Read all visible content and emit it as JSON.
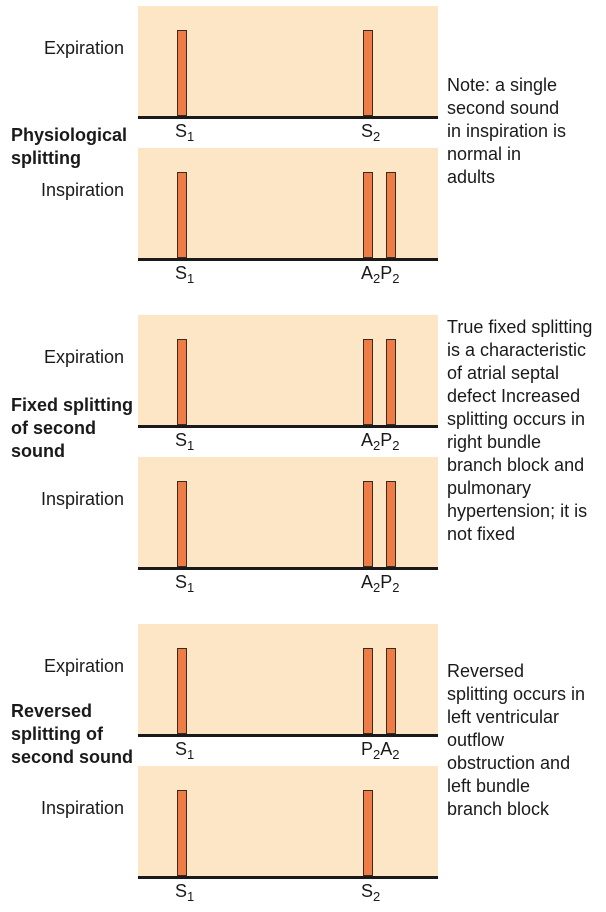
{
  "sections": [
    {
      "id": "physiological",
      "title": "Physiological splitting",
      "note": "Note: a single second sound in inspiration is normal in adults",
      "rows": [
        {
          "phase": "Expiration",
          "s1_label": {
            "main": "S",
            "sub": "1"
          },
          "s2_label": [
            {
              "main": "S",
              "sub": "2"
            }
          ],
          "second_sound_bars": 1
        },
        {
          "phase": "Inspiration",
          "s1_label": {
            "main": "S",
            "sub": "1"
          },
          "s2_label": [
            {
              "main": "A",
              "sub": "2"
            },
            {
              "main": "P",
              "sub": "2"
            }
          ],
          "second_sound_bars": 2
        }
      ]
    },
    {
      "id": "fixed",
      "title": "Fixed splitting of second sound",
      "note": "True fixed splitting is a characteristic of atrial septal defect Increased splitting occurs in right bundle branch block and pulmonary hypertension; it is not fixed",
      "rows": [
        {
          "phase": "Expiration",
          "s1_label": {
            "main": "S",
            "sub": "1"
          },
          "s2_label": [
            {
              "main": "A",
              "sub": "2"
            },
            {
              "main": "P",
              "sub": "2"
            }
          ],
          "second_sound_bars": 2
        },
        {
          "phase": "Inspiration",
          "s1_label": {
            "main": "S",
            "sub": "1"
          },
          "s2_label": [
            {
              "main": "A",
              "sub": "2"
            },
            {
              "main": "P",
              "sub": "2"
            }
          ],
          "second_sound_bars": 2
        }
      ]
    },
    {
      "id": "reversed",
      "title": "Reversed splitting of second sound",
      "note": "Reversed splitting occurs in left ventricular outflow obstruction and left bundle branch block",
      "rows": [
        {
          "phase": "Expiration",
          "s1_label": {
            "main": "S",
            "sub": "1"
          },
          "s2_label": [
            {
              "main": "P",
              "sub": "2"
            },
            {
              "main": "A",
              "sub": "2"
            }
          ],
          "second_sound_bars": 2
        },
        {
          "phase": "Inspiration",
          "s1_label": {
            "main": "S",
            "sub": "1"
          },
          "s2_label": [
            {
              "main": "S",
              "sub": "2"
            }
          ],
          "second_sound_bars": 1
        }
      ]
    }
  ],
  "colors": {
    "panel": "#fce6c6",
    "bar": "#ee7c47",
    "bar_outline": "#3a2a20",
    "baseline": "#1a1a1a"
  }
}
